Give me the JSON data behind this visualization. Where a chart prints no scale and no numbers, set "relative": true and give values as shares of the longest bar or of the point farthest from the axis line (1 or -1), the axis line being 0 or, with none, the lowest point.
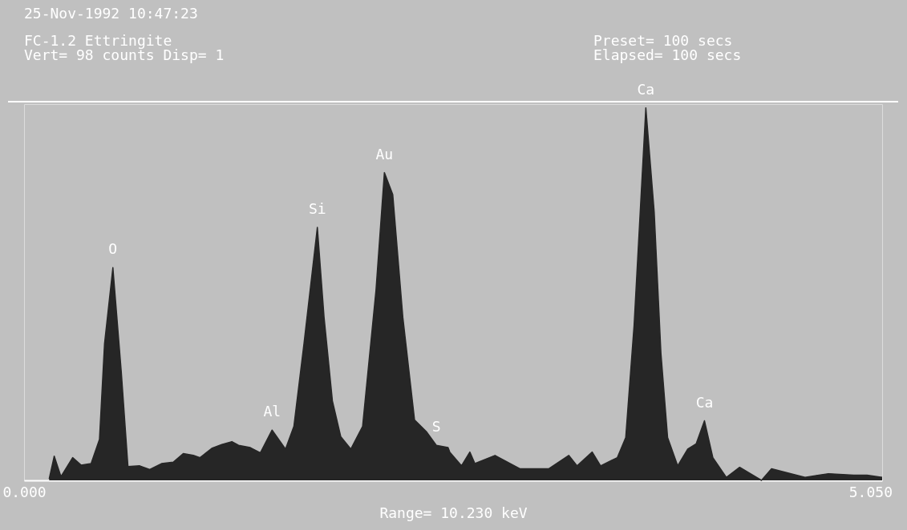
{
  "chart_data": {
    "type": "area",
    "relative": true,
    "title": "25-Nov-1992 10:47:23",
    "subtitle": "FC-1.2 Ettringite",
    "xlabel": "Range=  10.230 keV",
    "x": [
      0.15,
      0.18,
      0.22,
      0.29,
      0.34,
      0.4,
      0.45,
      0.48,
      0.53,
      0.58,
      0.62,
      0.69,
      0.75,
      0.82,
      0.89,
      0.95,
      1.01,
      1.05,
      1.12,
      1.18,
      1.24,
      1.28,
      1.35,
      1.41,
      1.48,
      1.56,
      1.61,
      1.67,
      1.75,
      1.79,
      1.84,
      1.89,
      1.95,
      2.02,
      2.1,
      2.15,
      2.2,
      2.26,
      2.33,
      2.4,
      2.46,
      2.53,
      2.54,
      2.61,
      2.66,
      2.69,
      2.81,
      2.96,
      3.13,
      3.25,
      3.3,
      3.39,
      3.44,
      3.54,
      3.59,
      3.64,
      3.71,
      3.76,
      3.8,
      3.84,
      3.9,
      3.96,
      4.01,
      4.06,
      4.11,
      4.19,
      4.27,
      4.4,
      4.46,
      4.66,
      4.8,
      4.95,
      5.03,
      5.12
    ],
    "series": [
      {
        "color": "#262626",
        "values": [
          0.004,
          0.065,
          0.01,
          0.061,
          0.041,
          0.045,
          0.11,
          0.366,
          0.571,
          0.292,
          0.037,
          0.039,
          0.029,
          0.045,
          0.049,
          0.072,
          0.067,
          0.061,
          0.086,
          0.096,
          0.104,
          0.094,
          0.088,
          0.074,
          0.135,
          0.084,
          0.145,
          0.366,
          0.679,
          0.438,
          0.213,
          0.117,
          0.084,
          0.145,
          0.511,
          0.826,
          0.767,
          0.438,
          0.162,
          0.131,
          0.094,
          0.088,
          0.076,
          0.039,
          0.076,
          0.045,
          0.067,
          0.031,
          0.031,
          0.067,
          0.039,
          0.076,
          0.039,
          0.061,
          0.115,
          0.417,
          1,
          0.72,
          0.342,
          0.115,
          0.039,
          0.084,
          0.098,
          0.16,
          0.061,
          0.008,
          0.035,
          0,
          0.031,
          0.008,
          0.018,
          0.014,
          0.014,
          0.008
        ]
      }
    ],
    "xlim": [
      0,
      5.12
    ],
    "xticks": [
      {
        "value": 0,
        "label": "0.000"
      },
      {
        "value": 5.05,
        "label": "5.050"
      }
    ],
    "tick_labels": "x",
    "grid": false,
    "legend": false,
    "annotations": [
      {
        "text": "O",
        "x": 0.53,
        "y": 0.571
      },
      {
        "text": "Al",
        "x": 1.48,
        "y": 0.135
      },
      {
        "text": "Si",
        "x": 1.75,
        "y": 0.679
      },
      {
        "text": "Au",
        "x": 2.15,
        "y": 0.826
      },
      {
        "text": "S",
        "x": 2.46,
        "y": 0.094
      },
      {
        "text": "Ca",
        "x": 3.71,
        "y": 1
      },
      {
        "text": "Ca",
        "x": 4.06,
        "y": 0.16
      },
      "Vert=      98 counts  Disp= 1",
      "Preset=        100 secs",
      "Elapsed=       100 secs"
    ]
  }
}
